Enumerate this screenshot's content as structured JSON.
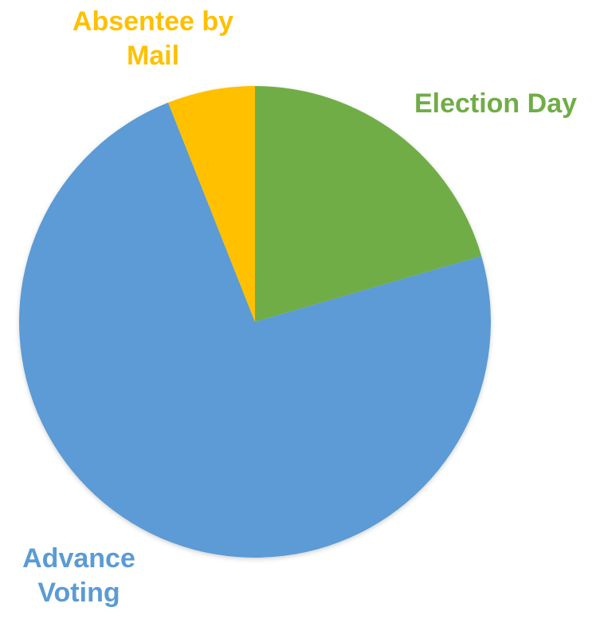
{
  "chart_data": {
    "type": "pie",
    "title": "",
    "slices": [
      {
        "label": "Election Day",
        "value": 20.5,
        "color": "#70AD47"
      },
      {
        "label": "Advance Voting",
        "value": 73.5,
        "color": "#5B9BD5"
      },
      {
        "label": "Absentee by Mail",
        "value": 6.0,
        "color": "#FFC000"
      }
    ],
    "start": "12 o'clock",
    "direction": "clockwise",
    "legend": "none",
    "data_labels": "category names outside slices"
  },
  "labels": {
    "election_day": [
      "Election Day"
    ],
    "advance_voting": [
      "Advance",
      "Voting"
    ],
    "absentee_by_mail": [
      "Absentee by",
      "Mail"
    ]
  }
}
